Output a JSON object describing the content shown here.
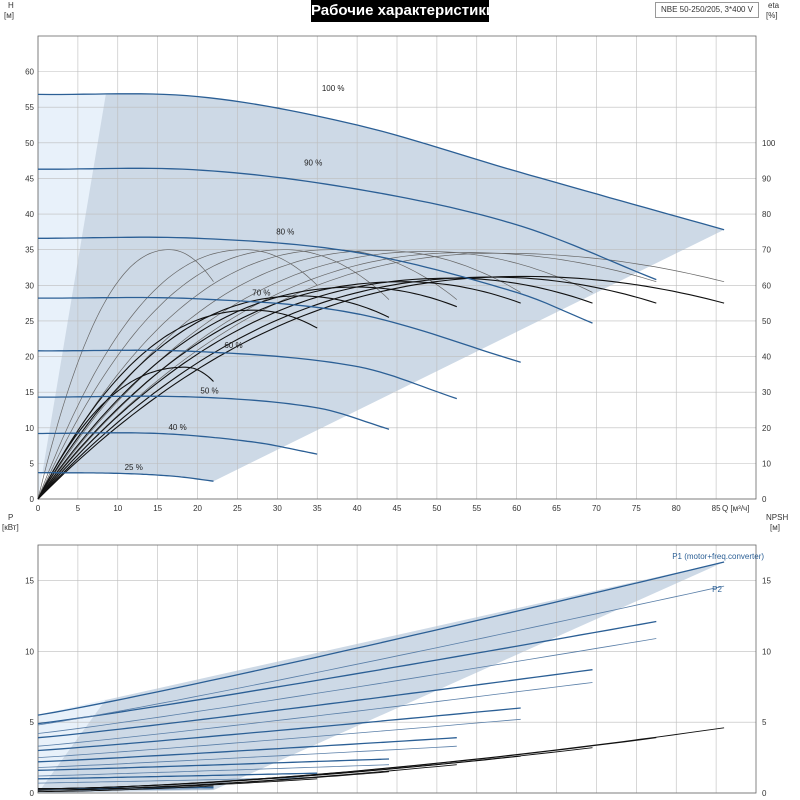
{
  "header": {
    "title": "Рабочие характеристики",
    "model": "NBE 50-250/205, 3*400 V"
  },
  "chart_data": [
    {
      "id": "qh",
      "type": "line",
      "title": "Рабочие характеристики",
      "xlabel": "Q [м³/ч]",
      "ylabel_left": {
        "name": "H",
        "unit": "[м]"
      },
      "ylabel_right": {
        "name": "eta",
        "unit": "[%]"
      },
      "xlim": [
        0,
        90
      ],
      "ylim_left": [
        0,
        65
      ],
      "ylim_right": [
        0,
        130
      ],
      "x_ticks": [
        0,
        5,
        10,
        15,
        20,
        25,
        30,
        35,
        40,
        45,
        50,
        55,
        60,
        65,
        70,
        75,
        80,
        85
      ],
      "y_ticks_left": [
        0,
        5,
        10,
        15,
        20,
        25,
        30,
        35,
        40,
        45,
        50,
        55,
        60
      ],
      "y_ticks_right": [
        0,
        10,
        20,
        30,
        40,
        50,
        60,
        70,
        80,
        90,
        100
      ],
      "grid": true,
      "colors": {
        "curve": "#2b5f95",
        "envelope": "#cdd9e6",
        "envelope_left": "#e8f1fa",
        "eta_light": "#666666",
        "eta_dark": "#111111"
      },
      "head_curves": [
        {
          "speed": "100 %",
          "x": [
            0,
            20,
            40,
            60,
            86
          ],
          "y": [
            56.8,
            56.5,
            52.5,
            46,
            37.8
          ]
        },
        {
          "speed": "90 %",
          "x": [
            0,
            20,
            40,
            60,
            77.5
          ],
          "y": [
            46.3,
            46.2,
            43.5,
            38.5,
            30.8
          ]
        },
        {
          "speed": "80 %",
          "x": [
            0,
            20,
            40,
            60,
            69.5
          ],
          "y": [
            36.6,
            36.6,
            34.6,
            29,
            24.7
          ]
        },
        {
          "speed": "70 %",
          "x": [
            0,
            20,
            40,
            60.5
          ],
          "y": [
            28.2,
            28.1,
            26.0,
            19.2
          ]
        },
        {
          "speed": "60 %",
          "x": [
            0,
            20,
            40,
            52.5
          ],
          "y": [
            20.8,
            20.7,
            18.6,
            14.1
          ]
        },
        {
          "speed": "50 %",
          "x": [
            0,
            20,
            35,
            44
          ],
          "y": [
            14.3,
            14.3,
            12.8,
            9.8
          ]
        },
        {
          "speed": "40 %",
          "x": [
            0,
            15,
            27,
            35
          ],
          "y": [
            9.2,
            9.2,
            8.0,
            6.3
          ]
        },
        {
          "speed": "25 %",
          "x": [
            0,
            10,
            17,
            22
          ],
          "y": [
            3.7,
            3.6,
            3.2,
            2.5
          ]
        }
      ],
      "speed_labels": [
        {
          "text": "100 %",
          "x": 37,
          "y": 57.3
        },
        {
          "text": "90 %",
          "x": 34.5,
          "y": 46.8
        },
        {
          "text": "80 %",
          "x": 31,
          "y": 37.1
        },
        {
          "text": "70 %",
          "x": 28,
          "y": 28.6
        },
        {
          "text": "60 %",
          "x": 24.5,
          "y": 21.2
        },
        {
          "text": "50 %",
          "x": 21.5,
          "y": 14.8
        },
        {
          "text": "40 %",
          "x": 17.5,
          "y": 9.7
        },
        {
          "text": "25 %",
          "x": 12,
          "y": 4.1
        }
      ],
      "envelope": {
        "x": [
          0,
          86,
          22,
          0
        ],
        "y": [
          56.8,
          37.8,
          2.5,
          0
        ]
      },
      "eta_curves_light": [
        {
          "peak_x": 16.5,
          "peak": 70,
          "end_x": 22,
          "end": 61
        },
        {
          "peak_x": 26,
          "peak": 70,
          "end_x": 35,
          "end": 60
        },
        {
          "peak_x": 31,
          "peak": 70,
          "end_x": 44,
          "end": 56
        },
        {
          "peak_x": 37,
          "peak": 70,
          "end_x": 52.5,
          "end": 56
        },
        {
          "peak_x": 43,
          "peak": 69.8,
          "end_x": 60.5,
          "end": 58
        },
        {
          "peak_x": 49,
          "peak": 69.5,
          "end_x": 69.5,
          "end": 58
        },
        {
          "peak_x": 54,
          "peak": 69.2,
          "end_x": 77.5,
          "end": 61
        },
        {
          "peak_x": 58,
          "peak": 69,
          "end_x": 86,
          "end": 61
        }
      ],
      "eta_curves_dark": [
        {
          "peak_x": 18.5,
          "peak": 37,
          "end_x": 22,
          "end": 33
        },
        {
          "peak_x": 27,
          "peak": 53,
          "end_x": 35,
          "end": 48
        },
        {
          "peak_x": 33,
          "peak": 57,
          "end_x": 44,
          "end": 51
        },
        {
          "peak_x": 40,
          "peak": 59.5,
          "end_x": 52.5,
          "end": 54
        },
        {
          "peak_x": 46,
          "peak": 61,
          "end_x": 60.5,
          "end": 55
        },
        {
          "peak_x": 52,
          "peak": 62,
          "end_x": 69.5,
          "end": 55
        },
        {
          "peak_x": 57,
          "peak": 62.3,
          "end_x": 77.5,
          "end": 55
        },
        {
          "peak_x": 61,
          "peak": 62.5,
          "end_x": 86,
          "end": 55
        }
      ]
    },
    {
      "id": "power",
      "type": "line",
      "xlim": [
        0,
        90
      ],
      "ylabel_left": {
        "name": "P",
        "unit": "[кВт]"
      },
      "ylabel_right": {
        "name": "NPSH",
        "unit": "[м]"
      },
      "ylim_left": [
        0,
        17.5
      ],
      "ylim_right": [
        0,
        17.5
      ],
      "y_ticks_left": [
        0,
        5,
        10,
        15
      ],
      "y_ticks_right": [
        0,
        5,
        10,
        15
      ],
      "grid": true,
      "series_labels": [
        {
          "text": "P1 (motor+freq.converter)",
          "x": 79.5,
          "y": 16.5
        },
        {
          "text": "P2",
          "x": 84.5,
          "y": 14.2
        }
      ],
      "envelope": {
        "x": [
          0,
          86,
          22,
          0
        ],
        "y": [
          5.5,
          16.3,
          0.2,
          0
        ]
      },
      "p1_curves": [
        {
          "speed": "100 %",
          "x": [
            0,
            86
          ],
          "y": [
            5.5,
            16.3
          ]
        },
        {
          "speed": "90 %",
          "x": [
            0,
            77.5
          ],
          "y": [
            4.9,
            12.1
          ]
        },
        {
          "speed": "80 %",
          "x": [
            0,
            69.5
          ],
          "y": [
            3.9,
            8.7
          ]
        },
        {
          "speed": "70 %",
          "x": [
            0,
            60.5
          ],
          "y": [
            3.0,
            6.0
          ]
        },
        {
          "speed": "60 %",
          "x": [
            0,
            52.5
          ],
          "y": [
            2.2,
            3.9
          ]
        },
        {
          "speed": "50 %",
          "x": [
            0,
            44
          ],
          "y": [
            1.6,
            2.4
          ]
        },
        {
          "speed": "40 %",
          "x": [
            0,
            35
          ],
          "y": [
            1.0,
            1.4
          ]
        },
        {
          "speed": "25 %",
          "x": [
            0,
            22
          ],
          "y": [
            0.3,
            0.4
          ]
        }
      ],
      "p2_curves": [
        {
          "speed": "100 %",
          "x": [
            0,
            86
          ],
          "y": [
            4.8,
            14.6
          ]
        },
        {
          "speed": "90 %",
          "x": [
            0,
            77.5
          ],
          "y": [
            4.2,
            10.9
          ]
        },
        {
          "speed": "80 %",
          "x": [
            0,
            69.5
          ],
          "y": [
            3.3,
            7.8
          ]
        },
        {
          "speed": "70 %",
          "x": [
            0,
            60.5
          ],
          "y": [
            2.5,
            5.2
          ]
        },
        {
          "speed": "60 %",
          "x": [
            0,
            52.5
          ],
          "y": [
            1.8,
            3.3
          ]
        },
        {
          "speed": "50 %",
          "x": [
            0,
            44
          ],
          "y": [
            1.2,
            2.0
          ]
        },
        {
          "speed": "40 %",
          "x": [
            0,
            35
          ],
          "y": [
            0.7,
            1.1
          ]
        },
        {
          "speed": "25 %",
          "x": [
            0,
            22
          ],
          "y": [
            0.2,
            0.3
          ]
        }
      ],
      "npsh_curves": [
        {
          "x": [
            0,
            86
          ],
          "y": [
            0.3,
            4.6
          ]
        },
        {
          "x": [
            0,
            77.5
          ],
          "y": [
            0.3,
            3.9
          ]
        },
        {
          "x": [
            0,
            69.5
          ],
          "y": [
            0.3,
            3.2
          ]
        },
        {
          "x": [
            0,
            60.5
          ],
          "y": [
            0.3,
            2.6
          ]
        },
        {
          "x": [
            0,
            52.5
          ],
          "y": [
            0.2,
            2.0
          ]
        },
        {
          "x": [
            0,
            44
          ],
          "y": [
            0.2,
            1.5
          ]
        },
        {
          "x": [
            0,
            35
          ],
          "y": [
            0.2,
            1.0
          ]
        },
        {
          "x": [
            0,
            22
          ],
          "y": [
            0.1,
            0.5
          ]
        }
      ]
    }
  ]
}
